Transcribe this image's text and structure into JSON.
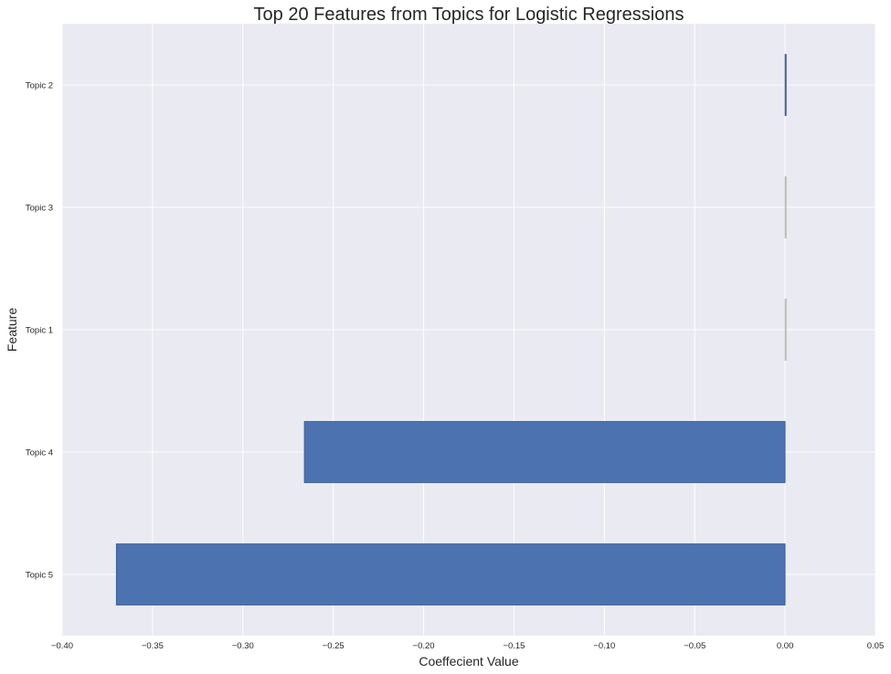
{
  "chart_data": {
    "type": "bar",
    "orientation": "horizontal",
    "title": "Top 20 Features from Topics for Logistic Regressions",
    "xlabel": "Coeffecient Value",
    "ylabel": "Feature",
    "categories": [
      "Topic 2",
      "Topic 3",
      "Topic 1",
      "Topic 4",
      "Topic 5"
    ],
    "values": [
      0.0005,
      0.0,
      0.0,
      -0.266,
      -0.37
    ],
    "bar_colors": [
      "#4c72b0",
      "#c0c0c0",
      "#c0c0c0",
      "#4c72b0",
      "#4c72b0"
    ],
    "xlim": [
      -0.4,
      0.05
    ],
    "xticks": [
      -0.4,
      -0.35,
      -0.3,
      -0.25,
      -0.2,
      -0.15,
      -0.1,
      -0.05,
      0.0,
      0.05
    ],
    "xtick_labels": [
      "−0.40",
      "−0.35",
      "−0.30",
      "−0.25",
      "−0.20",
      "−0.15",
      "−0.10",
      "−0.05",
      "0.00",
      "0.05"
    ],
    "grid": true,
    "background": "#eaeaf2",
    "legend": "none"
  }
}
